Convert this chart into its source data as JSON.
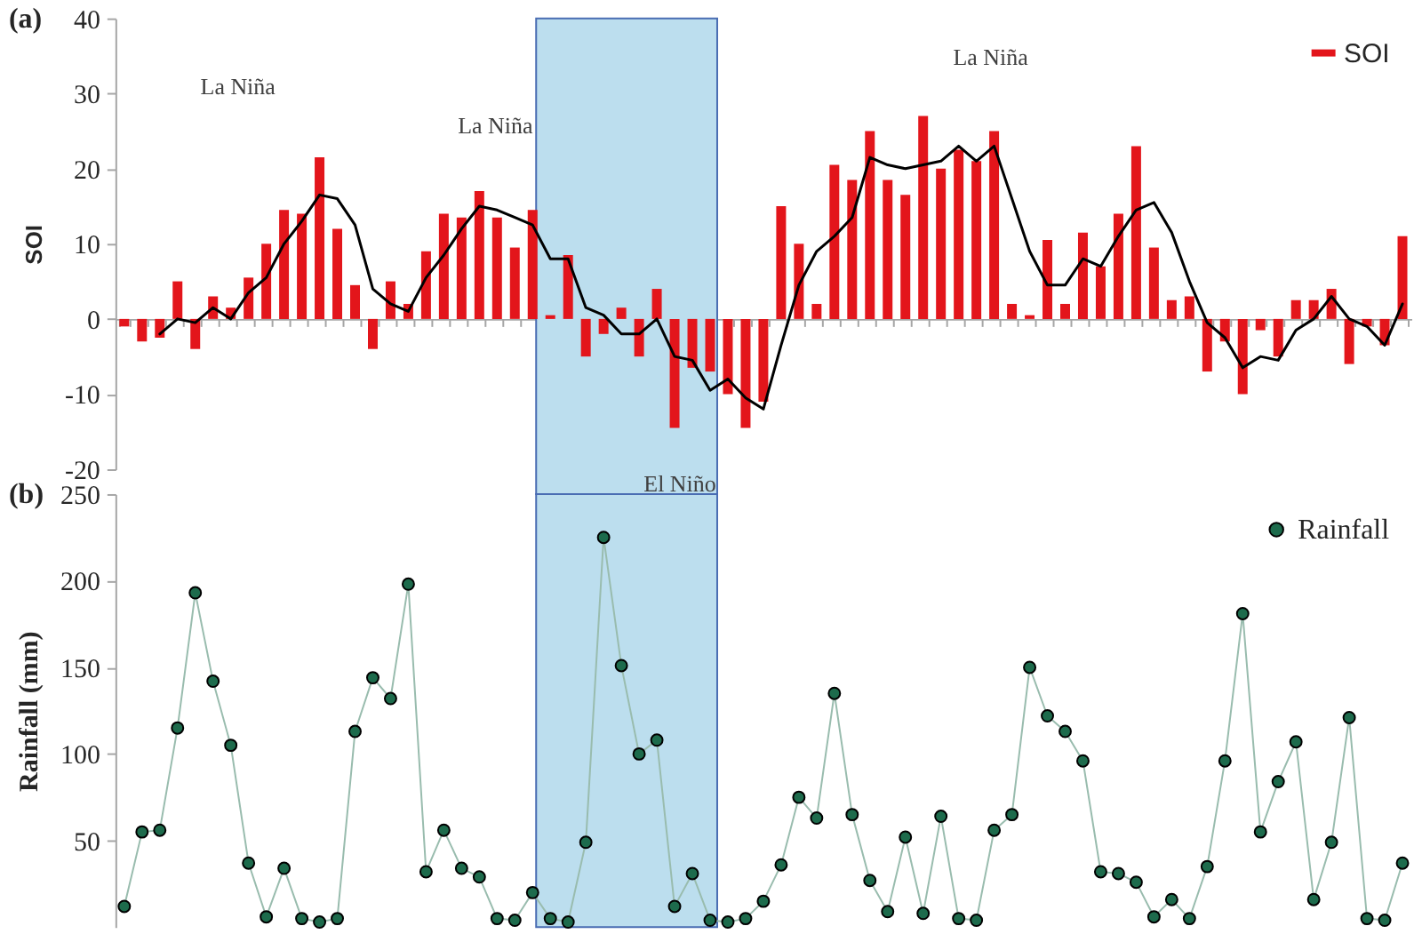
{
  "chart_data": [
    {
      "type": "bar",
      "title": "(a)",
      "ylabel": "SOI",
      "categories": [
        null,
        null,
        null,
        null,
        null,
        null,
        null,
        null,
        null,
        null,
        null,
        null,
        null,
        null,
        null,
        null,
        null,
        null,
        null,
        null,
        null,
        null,
        null,
        null,
        null,
        null,
        null,
        null,
        null,
        null,
        null,
        null,
        null,
        null,
        null,
        null,
        null,
        null,
        null,
        null,
        null,
        null,
        null,
        null,
        null,
        null,
        null,
        null,
        null,
        null,
        null,
        null,
        null,
        null,
        null,
        null,
        null,
        null,
        null,
        null,
        null,
        null,
        null,
        null,
        null,
        null,
        null,
        null,
        null,
        null,
        null,
        null,
        null
      ],
      "series": [
        {
          "name": "SOI",
          "color": "#e3151b",
          "values": [
            -1,
            -3,
            -2.5,
            5,
            -4,
            3,
            1.5,
            5.5,
            10,
            14.5,
            14,
            21.5,
            12,
            4.5,
            -4,
            5,
            2,
            9,
            14,
            13.5,
            17,
            13.5,
            9.5,
            14.5,
            0.5,
            8.5,
            -5,
            -2,
            1.5,
            -5,
            4,
            -14.5,
            -6.5,
            -7,
            -10,
            -14.5,
            -11,
            15,
            10,
            2,
            20.5,
            18.5,
            25,
            18.5,
            16.5,
            27,
            20,
            22.5,
            21,
            25,
            2,
            0.5,
            10.5,
            2,
            11.5,
            7,
            14,
            23,
            9.5,
            2.5,
            3,
            -7,
            -3,
            -10,
            -1.5,
            -5,
            2.5,
            2.5,
            4,
            -6,
            -1,
            -3.5,
            11
          ]
        },
        {
          "type": "line",
          "color": "#000000",
          "values": [
            null,
            null,
            -2,
            0,
            -0.5,
            1.5,
            0,
            3.5,
            5.5,
            10,
            13,
            16.5,
            16,
            12.5,
            4,
            2,
            1,
            5.5,
            8.5,
            12,
            15,
            14.5,
            13.5,
            12.5,
            8,
            8,
            1.5,
            0.5,
            -2,
            -2,
            0,
            -5,
            -5.5,
            -9.5,
            -8,
            -10.5,
            -12,
            -3.5,
            4.5,
            9,
            11,
            13.5,
            21.5,
            20.5,
            20,
            20.5,
            21,
            23,
            21,
            23,
            16,
            9,
            4.5,
            4.5,
            8,
            7,
            11,
            14.5,
            15.5,
            11.5,
            5,
            -0.5,
            -2.5,
            -6.5,
            -5,
            -5.5,
            -1.5,
            0,
            3,
            0,
            -1,
            -3.5,
            2
          ]
        }
      ],
      "ylim": [
        -20,
        40
      ],
      "yticks": [
        -20,
        -10,
        0,
        10,
        20,
        30,
        40
      ],
      "annotations": [
        "La Niña",
        "La Niña",
        "La Niña",
        "El Niño"
      ],
      "legend": "top right",
      "tick_labels": "y"
    },
    {
      "type": "line",
      "title": "(b)",
      "ylabel": "Rainfall (mm)",
      "categories": [
        null,
        null,
        null,
        null,
        null,
        null,
        null,
        null,
        null,
        null,
        null,
        null,
        null,
        null,
        null,
        null,
        null,
        null,
        null,
        null,
        null,
        null,
        null,
        null,
        null,
        null,
        null,
        null,
        null,
        null,
        null,
        null,
        null,
        null,
        null,
        null,
        null,
        null,
        null,
        null,
        null,
        null,
        null,
        null,
        null,
        null,
        null,
        null,
        null,
        null,
        null,
        null,
        null,
        null,
        null,
        null,
        null,
        null,
        null,
        null,
        null,
        null,
        null,
        null,
        null,
        null,
        null,
        null,
        null,
        null,
        null,
        null,
        null
      ],
      "series": [
        {
          "name": "Rainfall",
          "color": "#1d6b4c",
          "values": [
            12,
            55,
            56,
            115,
            193,
            142,
            105,
            37,
            6,
            34,
            5,
            3,
            5,
            113,
            144,
            132,
            198,
            32,
            56,
            34,
            29,
            5,
            4,
            20,
            5,
            3,
            49,
            225,
            151,
            100,
            108,
            12,
            31,
            4,
            3,
            5,
            15,
            36,
            75,
            63,
            135,
            65,
            27,
            9,
            52,
            8,
            64,
            5,
            4,
            56,
            65,
            150,
            122,
            113,
            96,
            32,
            31,
            26,
            6,
            16,
            5,
            35,
            96,
            181,
            55,
            84,
            107,
            16,
            49,
            121,
            5,
            4,
            37
          ]
        }
      ],
      "marker": "circle",
      "ylim": [
        0,
        250
      ],
      "yticks": [
        50,
        100,
        150,
        200,
        250
      ],
      "legend": "top right",
      "tick_labels": "y"
    }
  ]
}
